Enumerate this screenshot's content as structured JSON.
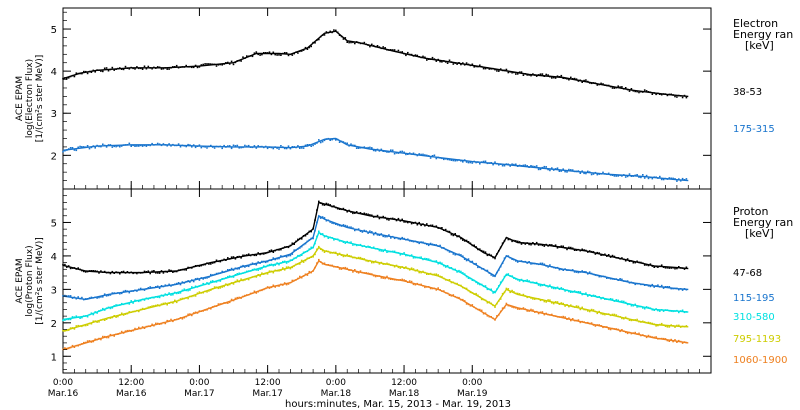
{
  "chart_data": [
    {
      "type": "line",
      "panel": "electron",
      "ylabel_lines": [
        "ACE EPAM",
        "log(Electron Flux)",
        "[1/(cm²s ster MeV)]"
      ],
      "yticks": [
        2,
        3,
        4,
        5
      ],
      "ylim": [
        1.2,
        5.5
      ],
      "legend_title": [
        "Electron",
        "Energy ran",
        "[keV]"
      ],
      "legend_placement": "right",
      "series": [
        {
          "name": "38-53",
          "color": "#000000",
          "x": [
            0,
            3,
            6,
            12,
            18,
            24,
            30,
            34,
            38,
            40,
            43,
            46,
            48,
            50,
            52,
            55,
            58,
            64,
            70,
            76,
            82,
            88,
            94,
            100,
            106,
            110
          ],
          "values": [
            3.82,
            3.95,
            4.02,
            4.08,
            4.08,
            4.12,
            4.2,
            4.42,
            4.42,
            4.4,
            4.55,
            4.9,
            4.95,
            4.72,
            4.68,
            4.58,
            4.48,
            4.3,
            4.18,
            4.05,
            3.92,
            3.85,
            3.7,
            3.55,
            3.45,
            3.4
          ]
        },
        {
          "name": "175-315",
          "color": "#1874cd",
          "x": [
            0,
            6,
            12,
            18,
            24,
            30,
            36,
            40,
            43,
            46,
            48,
            50,
            54,
            60,
            66,
            72,
            78,
            84,
            90,
            96,
            102,
            108,
            110
          ],
          "values": [
            2.12,
            2.22,
            2.25,
            2.25,
            2.22,
            2.2,
            2.2,
            2.18,
            2.22,
            2.38,
            2.4,
            2.25,
            2.15,
            2.05,
            1.95,
            1.85,
            1.78,
            1.7,
            1.62,
            1.55,
            1.5,
            1.42,
            1.4
          ]
        }
      ]
    },
    {
      "type": "line",
      "panel": "proton",
      "ylabel_lines": [
        "ACE EPAM",
        "log(Proton Flux)",
        "[1/(cm²s ster MeV)]"
      ],
      "yticks": [
        1,
        2,
        3,
        4,
        5
      ],
      "ylim": [
        0.5,
        6.0
      ],
      "legend_title": [
        "Proton",
        "Energy ran",
        "[keV]"
      ],
      "legend_placement": "right",
      "series": [
        {
          "name": "47-68",
          "color": "#000000",
          "x": [
            0,
            4,
            8,
            14,
            20,
            26,
            32,
            36,
            40,
            44,
            45,
            46,
            50,
            54,
            60,
            66,
            70,
            74,
            76,
            78,
            80,
            84,
            88,
            92,
            96,
            100,
            104,
            108,
            110
          ],
          "values": [
            3.72,
            3.55,
            3.5,
            3.5,
            3.55,
            3.8,
            4.0,
            4.1,
            4.3,
            4.8,
            5.6,
            5.55,
            5.35,
            5.2,
            5.05,
            4.85,
            4.55,
            4.1,
            3.95,
            4.55,
            4.4,
            4.35,
            4.25,
            4.15,
            4.0,
            3.85,
            3.7,
            3.65,
            3.62
          ]
        },
        {
          "name": "115-195",
          "color": "#1874cd",
          "x": [
            0,
            4,
            8,
            14,
            20,
            26,
            32,
            36,
            40,
            44,
            45,
            46,
            50,
            54,
            60,
            66,
            70,
            74,
            76,
            78,
            80,
            84,
            88,
            92,
            96,
            100,
            104,
            108,
            110
          ],
          "values": [
            2.8,
            2.7,
            2.85,
            3.0,
            3.15,
            3.4,
            3.7,
            3.85,
            4.05,
            4.55,
            5.2,
            5.1,
            4.85,
            4.7,
            4.5,
            4.3,
            4.0,
            3.6,
            3.4,
            4.0,
            3.85,
            3.75,
            3.6,
            3.5,
            3.35,
            3.2,
            3.1,
            3.02,
            3.0
          ]
        },
        {
          "name": "310-580",
          "color": "#00e0e0",
          "x": [
            0,
            4,
            8,
            14,
            20,
            26,
            32,
            36,
            40,
            44,
            45,
            46,
            50,
            54,
            60,
            66,
            70,
            74,
            76,
            78,
            80,
            84,
            88,
            92,
            96,
            100,
            104,
            108,
            110
          ],
          "values": [
            2.1,
            2.2,
            2.45,
            2.7,
            2.9,
            3.2,
            3.5,
            3.7,
            3.85,
            4.25,
            4.7,
            4.6,
            4.4,
            4.25,
            4.05,
            3.8,
            3.5,
            3.1,
            2.9,
            3.45,
            3.3,
            3.15,
            3.0,
            2.85,
            2.7,
            2.55,
            2.4,
            2.35,
            2.32
          ]
        },
        {
          "name": "795-1193",
          "color": "#cdcd00",
          "x": [
            0,
            4,
            8,
            14,
            20,
            26,
            32,
            36,
            40,
            44,
            45,
            46,
            50,
            54,
            60,
            66,
            70,
            74,
            76,
            78,
            80,
            84,
            88,
            92,
            96,
            100,
            104,
            108,
            110
          ],
          "values": [
            1.75,
            1.95,
            2.15,
            2.4,
            2.65,
            3.0,
            3.3,
            3.5,
            3.65,
            4.0,
            4.25,
            4.15,
            4.0,
            3.85,
            3.65,
            3.4,
            3.1,
            2.7,
            2.5,
            3.0,
            2.85,
            2.7,
            2.55,
            2.4,
            2.25,
            2.1,
            1.95,
            1.9,
            1.88
          ]
        },
        {
          "name": "1060-1900",
          "color": "#ee8020",
          "x": [
            0,
            4,
            8,
            14,
            20,
            26,
            32,
            36,
            40,
            44,
            45,
            46,
            50,
            54,
            60,
            66,
            70,
            74,
            76,
            78,
            80,
            84,
            88,
            92,
            96,
            100,
            104,
            108,
            110
          ],
          "values": [
            1.2,
            1.4,
            1.6,
            1.85,
            2.1,
            2.45,
            2.8,
            3.05,
            3.2,
            3.55,
            3.85,
            3.75,
            3.6,
            3.45,
            3.25,
            3.0,
            2.7,
            2.3,
            2.1,
            2.55,
            2.45,
            2.3,
            2.15,
            2.0,
            1.85,
            1.7,
            1.55,
            1.45,
            1.4
          ]
        }
      ]
    }
  ],
  "x_axis": {
    "range_hours": [
      0,
      114
    ],
    "ticks": [
      {
        "x": 0,
        "line1": "0:00",
        "line2": "Mar.16"
      },
      {
        "x": 12,
        "line1": "12:00",
        "line2": "Mar.16"
      },
      {
        "x": 24,
        "line1": "0:00",
        "line2": "Mar.17"
      },
      {
        "x": 36,
        "line1": "12:00",
        "line2": "Mar.17"
      },
      {
        "x": 48,
        "line1": "0:00",
        "line2": "Mar.18"
      },
      {
        "x": 60,
        "line1": "12:00",
        "line2": "Mar.18"
      },
      {
        "x": 72,
        "line1": "0:00",
        "line2": "Mar.19"
      }
    ],
    "xlabel": "hours:minutes, Mar. 15, 2013 - Mar. 19, 2013"
  }
}
